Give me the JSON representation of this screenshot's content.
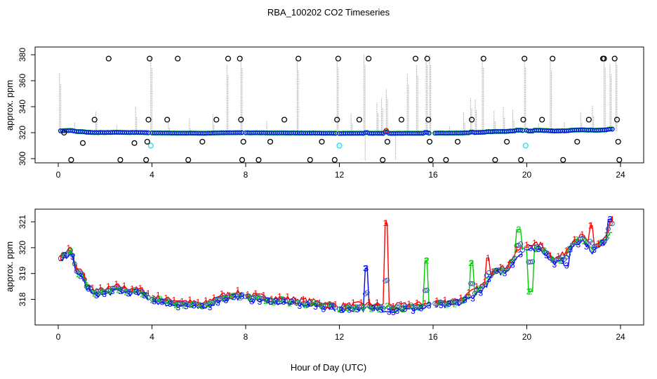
{
  "figure_title": "RBA_100202  CO2 Timeseries",
  "x_axis_label": "Hour of Day (UTC)",
  "chart_data": [
    {
      "type": "scatter",
      "ylabel": "approx. ppm",
      "xlim": [
        0,
        24
      ],
      "ylim": [
        298,
        380
      ],
      "x_ticks": [
        0,
        4,
        8,
        12,
        16,
        20,
        24
      ],
      "y_ticks": [
        300,
        320,
        340,
        360,
        380
      ],
      "grid": false,
      "colors": {
        "black": "#000000",
        "blue": "#0000ff",
        "green": "#00cc00",
        "red": "#ff0000",
        "cyan": "#33dddd",
        "gray": "#aaaaaa"
      },
      "raw_spikes": [
        [
          0.05,
          366
        ],
        [
          0.7,
          328
        ],
        [
          1.6,
          336
        ],
        [
          2.5,
          326
        ],
        [
          3.3,
          340
        ],
        [
          3.95,
          378
        ],
        [
          4.7,
          332
        ],
        [
          5.6,
          331
        ],
        [
          6.6,
          334
        ],
        [
          7.2,
          372
        ],
        [
          7.8,
          378
        ],
        [
          8.9,
          329
        ],
        [
          10.2,
          376
        ],
        [
          11.9,
          378
        ],
        [
          12.5,
          335
        ],
        [
          13.05,
          380
        ],
        [
          13.1,
          298
        ],
        [
          13.6,
          343
        ],
        [
          13.8,
          347
        ],
        [
          14.0,
          354
        ],
        [
          14.4,
          299
        ],
        [
          14.9,
          365
        ],
        [
          15.3,
          372
        ],
        [
          15.7,
          380
        ],
        [
          15.85,
          380
        ],
        [
          16.7,
          325
        ],
        [
          17.3,
          336
        ],
        [
          17.6,
          347
        ],
        [
          17.8,
          346
        ],
        [
          18.1,
          378
        ],
        [
          18.6,
          337
        ],
        [
          19.0,
          340
        ],
        [
          19.4,
          338
        ],
        [
          19.9,
          378
        ],
        [
          20.5,
          327
        ],
        [
          21.0,
          376
        ],
        [
          21.6,
          328
        ],
        [
          22.3,
          336
        ],
        [
          22.8,
          341
        ],
        [
          23.3,
          378
        ],
        [
          23.55,
          373
        ],
        [
          23.8,
          380
        ]
      ],
      "black_outliers": [
        [
          0.25,
          320
        ],
        [
          0.55,
          299
        ],
        [
          1.05,
          312
        ],
        [
          1.55,
          330
        ],
        [
          2.15,
          377
        ],
        [
          2.65,
          299
        ],
        [
          3.25,
          312
        ],
        [
          3.75,
          299
        ],
        [
          3.85,
          330
        ],
        [
          3.9,
          377
        ],
        [
          3.8,
          313
        ],
        [
          4.65,
          330
        ],
        [
          5.1,
          377
        ],
        [
          5.55,
          299
        ],
        [
          6.15,
          313
        ],
        [
          6.75,
          330
        ],
        [
          7.25,
          377
        ],
        [
          7.75,
          377
        ],
        [
          7.8,
          330
        ],
        [
          7.85,
          299
        ],
        [
          7.9,
          313
        ],
        [
          8.55,
          299
        ],
        [
          9.05,
          313
        ],
        [
          9.65,
          330
        ],
        [
          10.25,
          377
        ],
        [
          10.75,
          299
        ],
        [
          11.25,
          313
        ],
        [
          11.8,
          299
        ],
        [
          11.9,
          330
        ],
        [
          11.95,
          377
        ],
        [
          12.85,
          330
        ],
        [
          13.25,
          377
        ],
        [
          13.85,
          299
        ],
        [
          14.05,
          313
        ],
        [
          14.65,
          330
        ],
        [
          15.25,
          377
        ],
        [
          15.75,
          377
        ],
        [
          15.8,
          330
        ],
        [
          15.85,
          313
        ],
        [
          15.9,
          299
        ],
        [
          16.55,
          299
        ],
        [
          17.05,
          313
        ],
        [
          17.65,
          330
        ],
        [
          18.15,
          377
        ],
        [
          18.65,
          299
        ],
        [
          19.15,
          313
        ],
        [
          19.75,
          299
        ],
        [
          19.85,
          330
        ],
        [
          19.9,
          377
        ],
        [
          20.65,
          330
        ],
        [
          21.1,
          377
        ],
        [
          21.55,
          299
        ],
        [
          22.15,
          313
        ],
        [
          22.65,
          330
        ],
        [
          23.25,
          377
        ],
        [
          23.3,
          377
        ],
        [
          23.75,
          377
        ],
        [
          23.85,
          330
        ],
        [
          23.9,
          313
        ],
        [
          23.95,
          299
        ]
      ],
      "cyan_points": [
        [
          3.95,
          310
        ],
        [
          12.0,
          310
        ],
        [
          19.95,
          310
        ]
      ],
      "red_points": [
        [
          14.0,
          321.5
        ]
      ],
      "series_source": "bottom"
    },
    {
      "type": "line",
      "ylabel": "approx. ppm",
      "xlim": [
        0,
        24
      ],
      "ylim": [
        317.2,
        321.3
      ],
      "x_ticks": [
        0,
        4,
        8,
        12,
        16,
        20,
        24
      ],
      "y_ticks": [
        318,
        319,
        320,
        321
      ],
      "grid": false,
      "knots": [
        [
          0.1,
          319.6
        ],
        [
          0.3,
          319.75
        ],
        [
          0.55,
          319.95
        ],
        [
          0.75,
          319.1
        ],
        [
          1.0,
          319.05
        ],
        [
          1.2,
          318.55
        ],
        [
          1.5,
          318.3
        ],
        [
          2.0,
          318.3
        ],
        [
          2.5,
          318.45
        ],
        [
          3.0,
          318.35
        ],
        [
          3.6,
          318.3
        ],
        [
          3.9,
          318.1
        ],
        [
          4.5,
          317.95
        ],
        [
          5.5,
          317.85
        ],
        [
          6.2,
          317.75
        ],
        [
          6.8,
          318.05
        ],
        [
          7.6,
          318.2
        ],
        [
          8.2,
          318.1
        ],
        [
          9.2,
          318.0
        ],
        [
          10.0,
          317.95
        ],
        [
          11.0,
          317.85
        ],
        [
          12.0,
          317.7
        ],
        [
          13.0,
          317.75
        ],
        [
          14.5,
          317.7
        ],
        [
          15.5,
          317.75
        ],
        [
          16.0,
          317.85
        ],
        [
          16.5,
          317.85
        ],
        [
          17.2,
          317.95
        ],
        [
          17.8,
          318.3
        ],
        [
          18.2,
          318.55
        ],
        [
          18.6,
          319.15
        ],
        [
          19.1,
          319.15
        ],
        [
          19.6,
          319.8
        ],
        [
          20.0,
          320.05
        ],
        [
          20.6,
          320.05
        ],
        [
          21.2,
          319.5
        ],
        [
          21.6,
          319.7
        ],
        [
          22.0,
          320.25
        ],
        [
          22.4,
          320.4
        ],
        [
          22.8,
          319.95
        ],
        [
          23.2,
          320.2
        ],
        [
          23.6,
          320.6
        ]
      ],
      "spikes": [
        {
          "series": 1,
          "x": 14.0,
          "y": 320.95
        },
        {
          "series": 2,
          "x": 15.7,
          "y": 319.5
        },
        {
          "series": 2,
          "x": 17.65,
          "y": 319.4
        },
        {
          "series": 2,
          "x": 19.65,
          "y": 320.7
        },
        {
          "series": 2,
          "x": 20.15,
          "y": 318.3
        },
        {
          "series": 3,
          "x": 13.15,
          "y": 319.2
        },
        {
          "series": 3,
          "x": 14.3,
          "y": 317.5
        },
        {
          "series": 1,
          "x": 18.35,
          "y": 319.6
        },
        {
          "series": 1,
          "x": 22.75,
          "y": 320.85
        },
        {
          "series": 3,
          "x": 23.55,
          "y": 321.1
        },
        {
          "series": 1,
          "x": 23.65,
          "y": 321.1
        },
        {
          "series": 3,
          "x": 21.7,
          "y": 319.3
        }
      ],
      "series": [
        {
          "label": "1",
          "color": "#ff0000",
          "offset": 0.08
        },
        {
          "label": "2",
          "color": "#00cc00",
          "offset": -0.04
        },
        {
          "label": "3",
          "color": "#0000ff",
          "offset": -0.12
        }
      ],
      "point_color": "#3355aa"
    }
  ]
}
